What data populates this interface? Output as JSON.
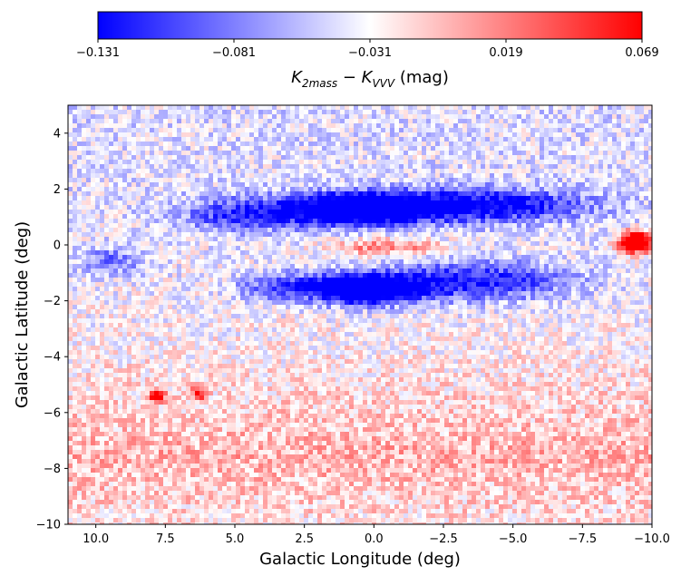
{
  "chart_data": {
    "type": "heatmap",
    "xlabel": "Galactic Longitude (deg)",
    "ylabel": "Galactic Latitude (deg)",
    "xlim": [
      11,
      -10
    ],
    "ylim": [
      -10,
      5
    ],
    "x_ticks": [
      10.0,
      7.5,
      5.0,
      2.5,
      0.0,
      -2.5,
      -5.0,
      -7.5,
      -10.0
    ],
    "x_tick_labels": [
      "10.0",
      "7.5",
      "5.0",
      "2.5",
      "0.0",
      "−2.5",
      "−5.0",
      "−7.5",
      "−10.0"
    ],
    "y_ticks": [
      4,
      2,
      0,
      -2,
      -4,
      -6,
      -8,
      -10
    ],
    "y_tick_labels": [
      "4",
      "2",
      "0",
      "−2",
      "−4",
      "−6",
      "−8",
      "−10"
    ],
    "colorbar": {
      "label_main": "K",
      "label_sub1": "2mass",
      "label_minus": " − K",
      "label_sub2": "VVV",
      "label_unit": " (mag)",
      "range": [
        -0.131,
        0.069
      ],
      "ticks": [
        -0.131,
        -0.081,
        -0.031,
        0.019,
        0.069
      ],
      "tick_labels": [
        "−0.131",
        "−0.081",
        "−0.031",
        "0.019",
        "0.069"
      ],
      "colormap": "bwr",
      "colors": {
        "low": "#0000ff",
        "mid": "#ffffff",
        "high": "#ff0000"
      },
      "placement": "top"
    },
    "features": [
      {
        "desc": "negative band above plane",
        "l": 0.5,
        "b": 1.3,
        "value": -0.131
      },
      {
        "desc": "negative band below plane",
        "l": 0.3,
        "b": -1.6,
        "value": -0.131
      },
      {
        "desc": "positive patch",
        "l": -9.3,
        "b": 0.1,
        "value": 0.069
      },
      {
        "desc": "positive spot",
        "l": 7.8,
        "b": -5.4,
        "value": 0.06
      },
      {
        "desc": "positive spot",
        "l": 6.3,
        "b": -5.3,
        "value": 0.05
      }
    ]
  }
}
